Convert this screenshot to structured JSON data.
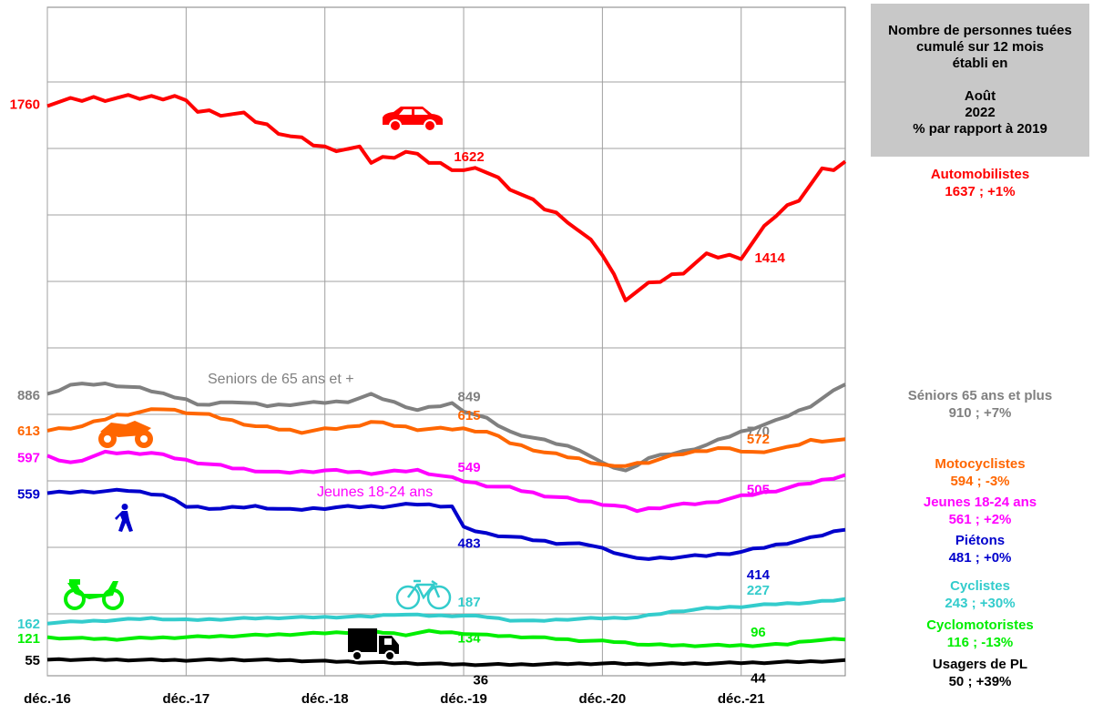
{
  "title_lines": [
    "Nombre de personnes tuées",
    "cumulé sur 12 mois",
    "établi en",
    "",
    "Août",
    "2022",
    "% par rapport à 2019"
  ],
  "legend": [
    {
      "name": "Automobilistes",
      "value": "1637 ; +1%",
      "color": "#ff0000"
    },
    {
      "name": "Séniors 65 ans et plus",
      "value": "910 ; +7%",
      "color": "#808080"
    },
    {
      "name": "Motocyclistes",
      "value": "594 ; -3%",
      "color": "#ff6600"
    },
    {
      "name": "Jeunes 18-24 ans",
      "value": "561 ; +2%",
      "color": "#ff00ff"
    },
    {
      "name": "Piétons",
      "value": "481 ; +0%",
      "color": "#0000cc"
    },
    {
      "name": "Cyclistes",
      "value": "243 ; +30%",
      "color": "#33cccc"
    },
    {
      "name": "Cyclomotoristes",
      "value": "116 ; -13%",
      "color": "#00ee00"
    },
    {
      "name": "Usagers de PL",
      "value": "50 ; +39%",
      "color": "#000000"
    }
  ],
  "annotations": {
    "seniors": "Seniors de 65 ans et +",
    "jeunes": "Jeunes 18-24 ans"
  },
  "icons": [
    "car-icon",
    "motorcycle-icon",
    "pedestrian-icon",
    "moped-icon",
    "bicycle-icon",
    "truck-icon"
  ],
  "chart_data": {
    "type": "line",
    "x_ticks": [
      "déc.-16",
      "déc.-17",
      "déc.-18",
      "déc.-19",
      "déc.-20",
      "déc.-21"
    ],
    "x_start": "déc.-16",
    "months": 69,
    "grid": true,
    "series": [
      {
        "name": "Automobilistes",
        "color": "#ff0000",
        "anchors": [
          [
            0,
            1760
          ],
          [
            4,
            1770
          ],
          [
            9,
            1772
          ],
          [
            11,
            1775
          ],
          [
            13,
            1745
          ],
          [
            17,
            1735
          ],
          [
            21,
            1692
          ],
          [
            24,
            1668
          ],
          [
            27,
            1665
          ],
          [
            28,
            1640
          ],
          [
            31,
            1660
          ],
          [
            33,
            1640
          ],
          [
            36,
            1622
          ],
          [
            38,
            1620
          ],
          [
            42,
            1556
          ],
          [
            45,
            1520
          ],
          [
            48,
            1450
          ],
          [
            50,
            1360
          ],
          [
            52,
            1385
          ],
          [
            55,
            1415
          ],
          [
            57,
            1445
          ],
          [
            60,
            1445
          ],
          [
            63,
            1530
          ],
          [
            65,
            1565
          ],
          [
            67,
            1620
          ],
          [
            68,
            1625
          ],
          [
            69,
            1637
          ]
        ],
        "labels": [
          {
            "i": 0,
            "v": 1760,
            "text": "1760"
          },
          {
            "i": 36,
            "v": 1622,
            "text": "1622"
          },
          {
            "i": 62,
            "v": 1414,
            "text": "1414"
          }
        ]
      },
      {
        "name": "Séniors 65 ans et plus",
        "color": "#808080",
        "anchors": [
          [
            0,
            886
          ],
          [
            2,
            908
          ],
          [
            5,
            910
          ],
          [
            8,
            900
          ],
          [
            12,
            875
          ],
          [
            13,
            860
          ],
          [
            16,
            870
          ],
          [
            19,
            860
          ],
          [
            22,
            865
          ],
          [
            26,
            870
          ],
          [
            28,
            885
          ],
          [
            32,
            850
          ],
          [
            35,
            865
          ],
          [
            36,
            849
          ],
          [
            38,
            830
          ],
          [
            40,
            800
          ],
          [
            43,
            780
          ],
          [
            46,
            760
          ],
          [
            48,
            727
          ],
          [
            50,
            710
          ],
          [
            52,
            740
          ],
          [
            55,
            755
          ],
          [
            57,
            770
          ],
          [
            60,
            800
          ],
          [
            63,
            825
          ],
          [
            66,
            860
          ],
          [
            69,
            910
          ]
        ],
        "labels": [
          {
            "i": 0,
            "v": 886,
            "text": "886"
          },
          {
            "i": 36,
            "v": 849,
            "text": "849"
          },
          {
            "i": 61,
            "v": 770,
            "text": "770"
          }
        ]
      },
      {
        "name": "Motocyclistes",
        "color": "#ff6600",
        "anchors": [
          [
            0,
            613
          ],
          [
            3,
            620
          ],
          [
            6,
            640
          ],
          [
            10,
            652
          ],
          [
            14,
            640
          ],
          [
            18,
            620
          ],
          [
            22,
            610
          ],
          [
            26,
            618
          ],
          [
            28,
            628
          ],
          [
            32,
            615
          ],
          [
            36,
            615
          ],
          [
            38,
            610
          ],
          [
            40,
            590
          ],
          [
            43,
            572
          ],
          [
            46,
            560
          ],
          [
            49,
            545
          ],
          [
            52,
            555
          ],
          [
            55,
            570
          ],
          [
            58,
            580
          ],
          [
            61,
            572
          ],
          [
            64,
            580
          ],
          [
            66,
            594
          ],
          [
            69,
            594
          ]
        ],
        "labels": [
          {
            "i": 0,
            "v": 613,
            "text": "613"
          },
          {
            "i": 36,
            "v": 615,
            "text": "615"
          },
          {
            "i": 61,
            "v": 572,
            "text": "572"
          }
        ]
      },
      {
        "name": "Jeunes 18-24 ans",
        "color": "#ff00ff",
        "anchors": [
          [
            0,
            597
          ],
          [
            2,
            585
          ],
          [
            5,
            605
          ],
          [
            9,
            605
          ],
          [
            12,
            590
          ],
          [
            16,
            575
          ],
          [
            20,
            565
          ],
          [
            24,
            570
          ],
          [
            28,
            565
          ],
          [
            32,
            570
          ],
          [
            36,
            549
          ],
          [
            38,
            540
          ],
          [
            40,
            535
          ],
          [
            43,
            520
          ],
          [
            46,
            510
          ],
          [
            49,
            500
          ],
          [
            51,
            490
          ],
          [
            54,
            500
          ],
          [
            57,
            505
          ],
          [
            60,
            518
          ],
          [
            63,
            530
          ],
          [
            66,
            545
          ],
          [
            69,
            561
          ]
        ],
        "labels": [
          {
            "i": 0,
            "v": 597,
            "text": "597"
          },
          {
            "i": 36,
            "v": 549,
            "text": "549"
          },
          {
            "i": 61,
            "v": 505,
            "text": "505"
          }
        ]
      },
      {
        "name": "Piétons",
        "color": "#0000cc",
        "anchors": [
          [
            0,
            559
          ],
          [
            3,
            562
          ],
          [
            7,
            565
          ],
          [
            10,
            555
          ],
          [
            12,
            530
          ],
          [
            15,
            525
          ],
          [
            18,
            530
          ],
          [
            21,
            522
          ],
          [
            25,
            528
          ],
          [
            29,
            530
          ],
          [
            32,
            535
          ],
          [
            35,
            530
          ],
          [
            36,
            483
          ],
          [
            38,
            470
          ],
          [
            41,
            460
          ],
          [
            44,
            450
          ],
          [
            47,
            445
          ],
          [
            49,
            430
          ],
          [
            51,
            414
          ],
          [
            54,
            418
          ],
          [
            57,
            422
          ],
          [
            60,
            430
          ],
          [
            63,
            445
          ],
          [
            66,
            460
          ],
          [
            69,
            481
          ]
        ],
        "labels": [
          {
            "i": 0,
            "v": 559,
            "text": "559"
          },
          {
            "i": 36,
            "v": 483,
            "text": "483"
          },
          {
            "i": 61,
            "v": 414,
            "text": "414"
          }
        ]
      },
      {
        "name": "Cyclistes",
        "color": "#33cccc",
        "anchors": [
          [
            0,
            162
          ],
          [
            3,
            167
          ],
          [
            6,
            172
          ],
          [
            9,
            178
          ],
          [
            12,
            172
          ],
          [
            16,
            176
          ],
          [
            20,
            180
          ],
          [
            24,
            182
          ],
          [
            28,
            184
          ],
          [
            30,
            192
          ],
          [
            33,
            187
          ],
          [
            36,
            187
          ],
          [
            38,
            183
          ],
          [
            40,
            172
          ],
          [
            42,
            168
          ],
          [
            45,
            175
          ],
          [
            48,
            178
          ],
          [
            51,
            181
          ],
          [
            54,
            200
          ],
          [
            57,
            212
          ],
          [
            60,
            218
          ],
          [
            63,
            227
          ],
          [
            66,
            232
          ],
          [
            69,
            243
          ]
        ],
        "labels": [
          {
            "i": 0,
            "v": 162,
            "text": "162"
          },
          {
            "i": 36,
            "v": 187,
            "text": "187"
          },
          {
            "i": 61,
            "v": 227,
            "text": "227"
          }
        ]
      },
      {
        "name": "Cyclomotoristes",
        "color": "#00ee00",
        "anchors": [
          [
            0,
            121
          ],
          [
            3,
            118
          ],
          [
            6,
            116
          ],
          [
            9,
            120
          ],
          [
            12,
            122
          ],
          [
            16,
            126
          ],
          [
            20,
            130
          ],
          [
            24,
            135
          ],
          [
            28,
            140
          ],
          [
            31,
            130
          ],
          [
            33,
            140
          ],
          [
            36,
            134
          ],
          [
            38,
            128
          ],
          [
            42,
            122
          ],
          [
            46,
            112
          ],
          [
            49,
            108
          ],
          [
            52,
            98
          ],
          [
            55,
            96
          ],
          [
            58,
            96
          ],
          [
            61,
            96
          ],
          [
            64,
            100
          ],
          [
            66,
            112
          ],
          [
            69,
            116
          ]
        ],
        "labels": [
          {
            "i": 0,
            "v": 121,
            "text": "121"
          },
          {
            "i": 36,
            "v": 134,
            "text": "134"
          },
          {
            "i": 61,
            "v": 96,
            "text": "96"
          }
        ]
      },
      {
        "name": "Usagers de PL",
        "color": "#000000",
        "anchors": [
          [
            0,
            55
          ],
          [
            4,
            54
          ],
          [
            8,
            53
          ],
          [
            12,
            52
          ],
          [
            16,
            54
          ],
          [
            20,
            52
          ],
          [
            24,
            48
          ],
          [
            28,
            44
          ],
          [
            32,
            40
          ],
          [
            36,
            36
          ],
          [
            40,
            36
          ],
          [
            44,
            38
          ],
          [
            48,
            40
          ],
          [
            52,
            38
          ],
          [
            56,
            40
          ],
          [
            60,
            42
          ],
          [
            63,
            44
          ],
          [
            66,
            47
          ],
          [
            69,
            50
          ]
        ],
        "labels": [
          {
            "i": 0,
            "v": 55,
            "text": "55"
          },
          {
            "i": 37,
            "v": 36,
            "text": "36"
          },
          {
            "i": 61,
            "v": 44,
            "text": "44"
          }
        ]
      }
    ]
  }
}
